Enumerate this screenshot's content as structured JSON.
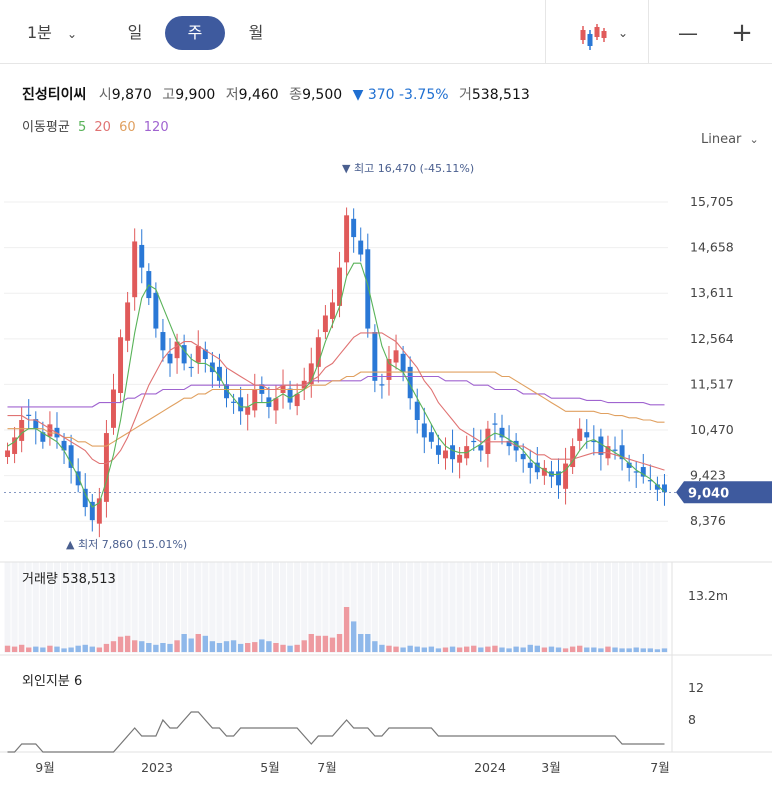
{
  "toolbar": {
    "interval_minute": "1분",
    "day": "일",
    "week": "주",
    "month": "월",
    "zoom_out": "—",
    "zoom_in": "+",
    "chart_style_icon": "candlestick-icon",
    "accent": "#3e5a9e"
  },
  "quote": {
    "name": "진성티이씨",
    "open_label": "시",
    "open": "9,870",
    "high_label": "고",
    "high": "9,900",
    "low_label": "저",
    "low": "9,460",
    "close_label": "종",
    "close": "9,500",
    "change": "▼ 370 -3.75%",
    "volume_label": "거",
    "volume": "538,513"
  },
  "ma_legend": {
    "label": "이동평균",
    "items": [
      {
        "period": "5",
        "color": "#59b359"
      },
      {
        "period": "20",
        "color": "#e07373"
      },
      {
        "period": "60",
        "color": "#e0a060"
      },
      {
        "period": "120",
        "color": "#a064d0"
      }
    ]
  },
  "scale_mode": "Linear",
  "annotations": {
    "high": "▼ 최고 16,470 (-45.11%)",
    "low": "▲ 최저 7,860 (15.01%)",
    "current_price": "9,040"
  },
  "volume_panel": {
    "label": "거래량",
    "value": "538,513",
    "axis_label": "13.2m"
  },
  "foreign_panel": {
    "label": "외인지분",
    "value": "6",
    "ticks": [
      "12",
      "8"
    ]
  },
  "colors": {
    "up": "#e05a5a",
    "down": "#2a78d6",
    "price_tag": "#3e5a9e",
    "foreign_line": "#777777"
  },
  "chart_data": {
    "type": "candlestick",
    "y_ticks": [
      "15,705",
      "14,658",
      "13,611",
      "12,564",
      "11,517",
      "10,470",
      "9,423",
      "8,376"
    ],
    "x_ticks": [
      "9월",
      "2023",
      "5월",
      "7월",
      "2024",
      "3월",
      "7월"
    ],
    "ylim": [
      7600,
      16900
    ],
    "close_series": [
      10000,
      10300,
      10700,
      10800,
      10500,
      10200,
      10600,
      10300,
      10000,
      9600,
      9200,
      8700,
      8400,
      8900,
      10400,
      11400,
      12600,
      13400,
      14800,
      14200,
      13500,
      12800,
      12300,
      12000,
      12500,
      12000,
      11900,
      12400,
      12100,
      11800,
      11600,
      11200,
      11100,
      10900,
      11000,
      11400,
      11300,
      11000,
      11200,
      11500,
      11100,
      11300,
      11600,
      12000,
      12600,
      13100,
      13400,
      14200,
      15400,
      14900,
      14500,
      12800,
      11600,
      11500,
      12100,
      12300,
      11800,
      11200,
      10700,
      10300,
      10200,
      9900,
      10000,
      9800,
      9900,
      10100,
      10200,
      10000,
      10500,
      10600,
      10300,
      10100,
      10000,
      9800,
      9600,
      9500,
      9600,
      9400,
      9200,
      9700,
      10100,
      10500,
      10300,
      10200,
      9900,
      10100,
      10000,
      9800,
      9600,
      9500,
      9400,
      9300,
      9100,
      9040
    ],
    "ma5": [
      10100,
      10200,
      10400,
      10500,
      10500,
      10400,
      10300,
      10200,
      10000,
      9700,
      9400,
      9000,
      8700,
      8800,
      9300,
      9900,
      10700,
      11700,
      12700,
      13500,
      13800,
      13700,
      13300,
      12900,
      12500,
      12300,
      12100,
      12000,
      12000,
      11900,
      11700,
      11400,
      11200,
      11000,
      11000,
      11100,
      11100,
      11100,
      11200,
      11300,
      11200,
      11300,
      11400,
      11600,
      12000,
      12500,
      12900,
      13300,
      14000,
      14300,
      14300,
      13800,
      13100,
      12400,
      12000,
      11900,
      11800,
      11500,
      11200,
      10900,
      10600,
      10300,
      10100,
      10000,
      9950,
      9950,
      10050,
      10150,
      10300,
      10400,
      10350,
      10250,
      10150,
      10000,
      9800,
      9650,
      9550,
      9450,
      9450,
      9550,
      9750,
      10000,
      10200,
      10250,
      10150,
      10050,
      9950,
      9850,
      9700,
      9550,
      9450,
      9350,
      9200,
      9050
    ],
    "ma20": [
      10800,
      10800,
      10800,
      10700,
      10700,
      10600,
      10500,
      10400,
      10300,
      10200,
      10100,
      10000,
      9800,
      9700,
      9700,
      9800,
      10000,
      10300,
      10700,
      11100,
      11500,
      11800,
      12100,
      12300,
      12400,
      12500,
      12500,
      12400,
      12300,
      12200,
      12100,
      11900,
      11800,
      11700,
      11600,
      11500,
      11500,
      11400,
      11400,
      11500,
      11500,
      11500,
      11500,
      11600,
      11700,
      11900,
      12000,
      12200,
      12400,
      12600,
      12700,
      12700,
      12700,
      12700,
      12600,
      12500,
      12300,
      12100,
      11900,
      11600,
      11400,
      11100,
      10900,
      10700,
      10500,
      10400,
      10300,
      10200,
      10200,
      10200,
      10200,
      10200,
      10100,
      10100,
      10000,
      9900,
      9900,
      9800,
      9800,
      9800,
      9800,
      9850,
      9900,
      9950,
      9950,
      9950,
      9900,
      9850,
      9800,
      9750,
      9700,
      9650,
      9600,
      9550
    ],
    "ma60": [
      10500,
      10500,
      10500,
      10500,
      10500,
      10500,
      10400,
      10400,
      10300,
      10300,
      10200,
      10200,
      10100,
      10100,
      10100,
      10200,
      10300,
      10400,
      10500,
      10600,
      10700,
      10800,
      10900,
      11000,
      11100,
      11200,
      11200,
      11300,
      11300,
      11400,
      11400,
      11400,
      11400,
      11400,
      11400,
      11400,
      11400,
      11400,
      11400,
      11400,
      11400,
      11400,
      11400,
      11500,
      11500,
      11500,
      11600,
      11600,
      11700,
      11700,
      11800,
      11800,
      11800,
      11800,
      11800,
      11800,
      11800,
      11800,
      11800,
      11800,
      11800,
      11800,
      11800,
      11800,
      11800,
      11800,
      11800,
      11800,
      11800,
      11800,
      11700,
      11700,
      11600,
      11500,
      11400,
      11300,
      11200,
      11100,
      11000,
      10900,
      10900,
      10900,
      10900,
      10900,
      10850,
      10850,
      10800,
      10800,
      10750,
      10750,
      10700,
      10700,
      10650,
      10650
    ],
    "ma120": [
      11000,
      11000,
      11000,
      11000,
      11000,
      11000,
      11000,
      11000,
      11000,
      11000,
      11000,
      11000,
      11000,
      11100,
      11100,
      11100,
      11100,
      11200,
      11200,
      11300,
      11300,
      11300,
      11400,
      11400,
      11400,
      11400,
      11500,
      11500,
      11500,
      11500,
      11500,
      11500,
      11500,
      11500,
      11500,
      11500,
      11500,
      11500,
      11500,
      11500,
      11500,
      11500,
      11500,
      11600,
      11600,
      11600,
      11600,
      11600,
      11600,
      11600,
      11600,
      11700,
      11700,
      11700,
      11700,
      11700,
      11700,
      11700,
      11700,
      11700,
      11700,
      11700,
      11600,
      11600,
      11600,
      11600,
      11500,
      11500,
      11500,
      11400,
      11400,
      11400,
      11400,
      11300,
      11300,
      11300,
      11300,
      11200,
      11200,
      11200,
      11200,
      11200,
      11150,
      11150,
      11150,
      11100,
      11100,
      11100,
      11100,
      11100,
      11100,
      11050,
      11050,
      11050
    ],
    "volume_relative": [
      0.07,
      0.06,
      0.08,
      0.05,
      0.06,
      0.05,
      0.07,
      0.06,
      0.04,
      0.05,
      0.07,
      0.08,
      0.06,
      0.05,
      0.09,
      0.12,
      0.17,
      0.18,
      0.13,
      0.12,
      0.1,
      0.08,
      0.1,
      0.09,
      0.13,
      0.2,
      0.15,
      0.2,
      0.18,
      0.12,
      0.1,
      0.12,
      0.13,
      0.09,
      0.1,
      0.11,
      0.14,
      0.12,
      0.1,
      0.08,
      0.07,
      0.08,
      0.13,
      0.2,
      0.18,
      0.18,
      0.16,
      0.2,
      0.5,
      0.34,
      0.2,
      0.2,
      0.12,
      0.08,
      0.07,
      0.06,
      0.05,
      0.07,
      0.06,
      0.05,
      0.06,
      0.04,
      0.05,
      0.06,
      0.05,
      0.06,
      0.07,
      0.05,
      0.06,
      0.07,
      0.05,
      0.04,
      0.06,
      0.05,
      0.08,
      0.07,
      0.05,
      0.06,
      0.05,
      0.04,
      0.06,
      0.07,
      0.05,
      0.05,
      0.04,
      0.06,
      0.05,
      0.04,
      0.04,
      0.05,
      0.04,
      0.04,
      0.03,
      0.04
    ],
    "foreign_ownership": [
      4,
      4,
      5,
      5,
      5,
      4,
      4,
      4,
      4,
      4,
      4,
      4,
      4,
      4,
      4,
      4,
      5,
      6,
      7,
      6,
      6,
      6,
      8,
      7,
      7,
      8,
      9,
      9,
      8,
      7,
      7,
      6,
      6,
      7,
      7,
      7,
      7,
      7,
      7,
      7,
      7,
      7,
      6,
      5,
      6,
      6,
      6,
      7,
      8,
      7,
      7,
      7,
      6,
      6,
      7,
      7,
      7,
      7,
      7,
      7,
      7,
      6,
      6,
      6,
      6,
      6,
      6,
      6,
      6,
      6,
      6,
      6,
      6,
      6,
      6,
      6,
      6,
      6,
      6,
      6,
      6,
      6,
      6,
      6,
      6,
      6,
      6,
      5,
      5,
      5,
      5,
      5,
      5,
      5
    ]
  }
}
